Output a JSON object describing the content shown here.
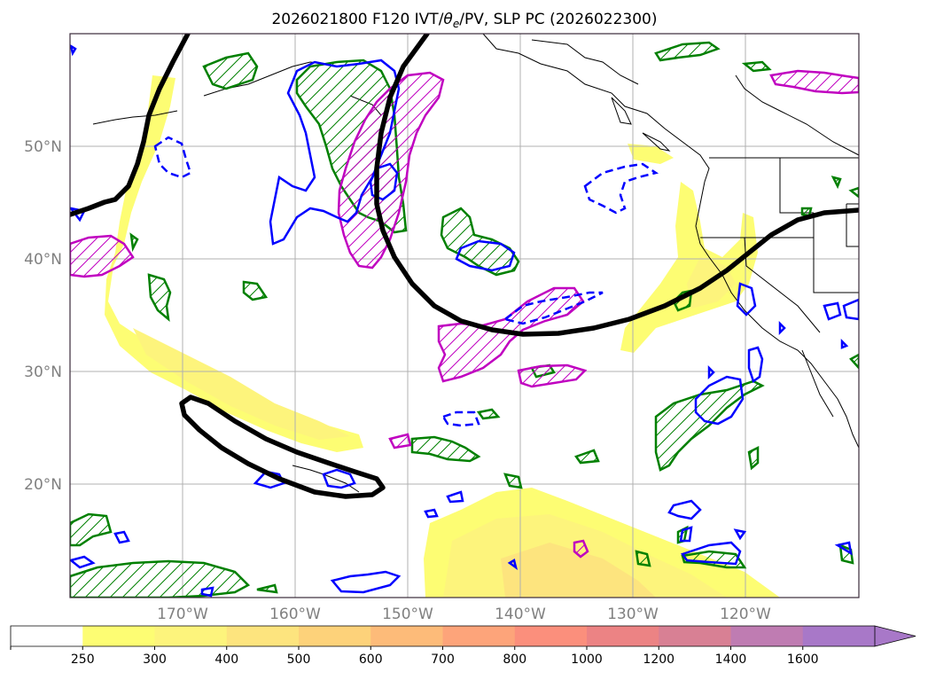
{
  "title": {
    "prefix": "2026021800 F120 IVT/",
    "theta": "θ",
    "sub": "e",
    "suffix": "/PV, SLP PC (2026022300)"
  },
  "map": {
    "lat_labels": [
      "50°N",
      "40°N",
      "30°N",
      "20°N"
    ],
    "lon_labels": [
      "170°W",
      "160°W",
      "150°W",
      "140°W",
      "130°W",
      "120°W"
    ],
    "lat_values": [
      50,
      40,
      30,
      20
    ],
    "lon_values": [
      -170,
      -160,
      -150,
      -140,
      -130,
      -120
    ],
    "extent": {
      "lon_min": -180,
      "lon_max": -110,
      "lat_min": 10,
      "lat_max": 60
    },
    "grid": true
  },
  "colorbar": {
    "levels": [
      "250",
      "300",
      "400",
      "500",
      "600",
      "700",
      "800",
      "1000",
      "1200",
      "1400",
      "1600"
    ],
    "colors": [
      "#ffffff",
      "#fdfd73",
      "#fdf47c",
      "#fde47e",
      "#fdd27a",
      "#fdbb79",
      "#fda47a",
      "#fb8f7c",
      "#ec8384",
      "#d88094",
      "#bf7cb2",
      "#a878c8"
    ],
    "extend": "max"
  },
  "colors": {
    "ivt_fill": "#fdf17e",
    "pv_positive": "#0000ff",
    "pv_negative": "#008000",
    "theta_e": "#c000c0",
    "slp_pc": "#000000",
    "grid": "#b0b0b0"
  }
}
